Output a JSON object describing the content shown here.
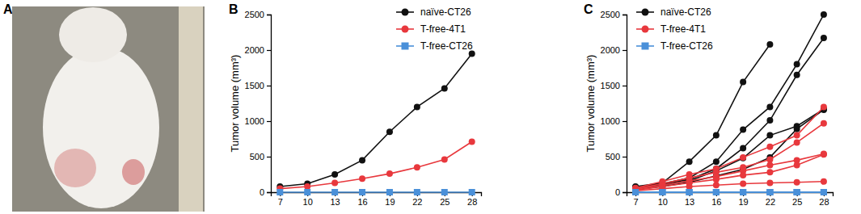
{
  "chart_data": [
    {
      "type": "image",
      "title": "A"
    },
    {
      "type": "line",
      "title": "B",
      "x": [
        7,
        10,
        13,
        16,
        19,
        22,
        25,
        28
      ],
      "xlim": [
        6,
        29
      ],
      "xticks": [
        7,
        10,
        13,
        16,
        19,
        22,
        25,
        28
      ],
      "ylim": [
        0,
        2500
      ],
      "yticks": [
        0,
        500,
        1000,
        1500,
        2000,
        2500
      ],
      "y_label": "Tumor volume (mm³)",
      "legend": "upper right",
      "series": [
        {
          "name": "naïve-CT26",
          "color": "#111111",
          "marker": "circle",
          "values": [
            80,
            120,
            250,
            450,
            850,
            1200,
            1460,
            1950
          ]
        },
        {
          "name": "T-free-4T1",
          "color": "#e8383d",
          "marker": "circle",
          "values": [
            50,
            80,
            130,
            190,
            260,
            350,
            460,
            710
          ]
        },
        {
          "name": "T-free-CT26",
          "color": "#4a90d9",
          "marker": "square",
          "values": [
            0,
            0,
            0,
            0,
            0,
            0,
            0,
            0
          ]
        }
      ]
    },
    {
      "type": "line",
      "title": "C",
      "x": [
        7,
        10,
        13,
        16,
        19,
        22,
        25,
        28
      ],
      "xlim": [
        6,
        29
      ],
      "xticks": [
        7,
        10,
        13,
        16,
        19,
        22,
        25,
        28
      ],
      "ylim": [
        0,
        2500
      ],
      "yticks": [
        0,
        500,
        1000,
        1500,
        2000,
        2500
      ],
      "y_label": "Tumor volume (mm³)",
      "legend": "upper left",
      "series": [
        {
          "name": "naïve-CT26",
          "color": "#111111",
          "marker": "circle",
          "values": [
            80,
            130,
            430,
            800,
            1550,
            2080,
            null,
            null
          ]
        },
        {
          "name": "naïve-CT26",
          "color": "#111111",
          "marker": "circle",
          "values": [
            70,
            120,
            200,
            430,
            880,
            1200,
            1800,
            2500
          ]
        },
        {
          "name": "naïve-CT26",
          "color": "#111111",
          "marker": "circle",
          "values": [
            60,
            110,
            180,
            330,
            620,
            1010,
            1650,
            2170
          ]
        },
        {
          "name": "naïve-CT26",
          "color": "#111111",
          "marker": "circle",
          "values": [
            50,
            100,
            160,
            300,
            480,
            800,
            930,
            1170
          ]
        },
        {
          "name": "naïve-CT26",
          "color": "#111111",
          "marker": "circle",
          "values": [
            40,
            80,
            140,
            230,
            320,
            490,
            890,
            1160
          ]
        },
        {
          "name": "T-free-4T1",
          "color": "#e8383d",
          "marker": "circle",
          "values": [
            60,
            150,
            250,
            330,
            490,
            640,
            800,
            1200
          ]
        },
        {
          "name": "T-free-4T1",
          "color": "#e8383d",
          "marker": "circle",
          "values": [
            50,
            120,
            200,
            280,
            350,
            460,
            700,
            970
          ]
        },
        {
          "name": "T-free-4T1",
          "color": "#e8383d",
          "marker": "circle",
          "values": [
            40,
            100,
            160,
            220,
            300,
            380,
            450,
            540
          ]
        },
        {
          "name": "T-free-4T1",
          "color": "#e8383d",
          "marker": "circle",
          "values": [
            30,
            80,
            130,
            180,
            240,
            280,
            380,
            530
          ]
        },
        {
          "name": "T-free-4T1",
          "color": "#e8383d",
          "marker": "circle",
          "values": [
            20,
            50,
            80,
            100,
            120,
            130,
            140,
            150
          ]
        },
        {
          "name": "T-free-CT26",
          "color": "#4a90d9",
          "marker": "square",
          "values": [
            0,
            0,
            0,
            0,
            0,
            0,
            0,
            0
          ]
        },
        {
          "name": "T-free-CT26",
          "color": "#4a90d9",
          "marker": "square",
          "values": [
            0,
            0,
            0,
            0,
            0,
            0,
            0,
            0
          ]
        },
        {
          "name": "T-free-CT26",
          "color": "#4a90d9",
          "marker": "square",
          "values": [
            0,
            0,
            0,
            0,
            0,
            0,
            0,
            0
          ]
        }
      ]
    }
  ]
}
